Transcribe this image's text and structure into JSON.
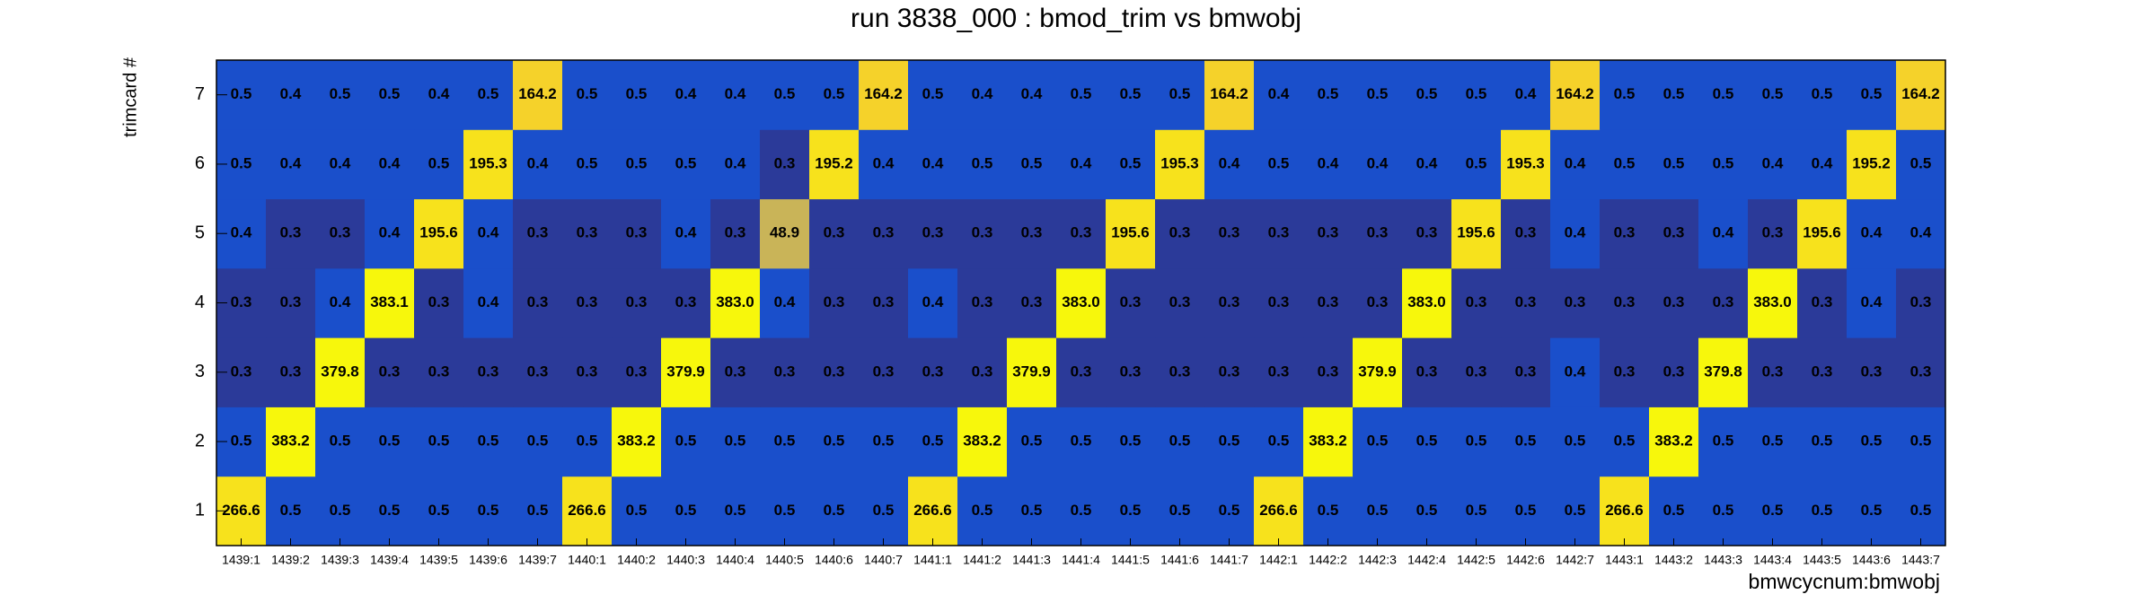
{
  "chart_data": {
    "type": "heatmap",
    "title": "run 3838_000 : bmod_trim vs bmwobj",
    "x_label": "bmwcycnum:bmwobj",
    "y_label": "trimcard #",
    "categories": [
      "1439:1",
      "1439:2",
      "1439:3",
      "1439:4",
      "1439:5",
      "1439:6",
      "1439:7",
      "1440:1",
      "1440:2",
      "1440:3",
      "1440:4",
      "1440:5",
      "1440:6",
      "1440:7",
      "1441:1",
      "1441:2",
      "1441:3",
      "1441:4",
      "1441:5",
      "1441:6",
      "1441:7",
      "1442:1",
      "1442:2",
      "1442:3",
      "1442:4",
      "1442:5",
      "1442:6",
      "1442:7",
      "1443:1",
      "1443:2",
      "1443:3",
      "1443:4",
      "1443:5",
      "1443:6",
      "1443:7"
    ],
    "y_categories": [
      1,
      2,
      3,
      4,
      5,
      6,
      7
    ],
    "values": [
      [
        266.6,
        0.5,
        0.5,
        0.5,
        0.5,
        0.5,
        0.5,
        266.6,
        0.5,
        0.5,
        0.5,
        0.5,
        0.5,
        0.5,
        266.6,
        0.5,
        0.5,
        0.5,
        0.5,
        0.5,
        0.5,
        266.6,
        0.5,
        0.5,
        0.5,
        0.5,
        0.5,
        0.5,
        266.6,
        0.5,
        0.5,
        0.5,
        0.5,
        0.5,
        0.5
      ],
      [
        0.5,
        383.2,
        0.5,
        0.5,
        0.5,
        0.5,
        0.5,
        0.5,
        383.2,
        0.5,
        0.5,
        0.5,
        0.5,
        0.5,
        0.5,
        383.2,
        0.5,
        0.5,
        0.5,
        0.5,
        0.5,
        0.5,
        383.2,
        0.5,
        0.5,
        0.5,
        0.5,
        0.5,
        0.5,
        383.2,
        0.5,
        0.5,
        0.5,
        0.5,
        0.5
      ],
      [
        0.3,
        0.3,
        379.8,
        0.3,
        0.3,
        0.3,
        0.3,
        0.3,
        0.3,
        379.9,
        0.3,
        0.3,
        0.3,
        0.3,
        0.3,
        0.3,
        379.9,
        0.3,
        0.3,
        0.3,
        0.3,
        0.3,
        0.3,
        379.9,
        0.3,
        0.3,
        0.3,
        0.4,
        0.3,
        0.3,
        379.8,
        0.3,
        0.3,
        0.3,
        0.3
      ],
      [
        0.3,
        0.3,
        0.4,
        383.1,
        0.3,
        0.4,
        0.3,
        0.3,
        0.3,
        0.3,
        383.0,
        0.4,
        0.3,
        0.3,
        0.4,
        0.3,
        0.3,
        383.0,
        0.3,
        0.3,
        0.3,
        0.3,
        0.3,
        0.3,
        383.0,
        0.3,
        0.3,
        0.3,
        0.3,
        0.3,
        0.3,
        383.0,
        0.3,
        0.4,
        0.3
      ],
      [
        0.4,
        0.3,
        0.3,
        0.4,
        195.6,
        0.4,
        0.3,
        0.3,
        0.3,
        0.4,
        0.3,
        48.9,
        0.3,
        0.3,
        0.3,
        0.3,
        0.3,
        0.3,
        195.6,
        0.3,
        0.3,
        0.3,
        0.3,
        0.3,
        0.3,
        195.6,
        0.3,
        0.4,
        0.3,
        0.3,
        0.4,
        0.3,
        195.6,
        0.4,
        0.4
      ],
      [
        0.5,
        0.4,
        0.4,
        0.4,
        0.5,
        195.3,
        0.4,
        0.5,
        0.5,
        0.5,
        0.4,
        0.3,
        195.2,
        0.4,
        0.4,
        0.5,
        0.5,
        0.4,
        0.5,
        195.3,
        0.4,
        0.5,
        0.4,
        0.4,
        0.4,
        0.5,
        195.3,
        0.4,
        0.5,
        0.5,
        0.5,
        0.4,
        0.4,
        195.2,
        0.5
      ],
      [
        0.5,
        0.4,
        0.5,
        0.5,
        0.4,
        0.5,
        164.2,
        0.5,
        0.5,
        0.4,
        0.4,
        0.5,
        0.5,
        164.2,
        0.5,
        0.4,
        0.4,
        0.5,
        0.5,
        0.5,
        164.2,
        0.4,
        0.5,
        0.5,
        0.5,
        0.5,
        0.4,
        164.2,
        0.5,
        0.5,
        0.5,
        0.5,
        0.5,
        0.5,
        164.2
      ]
    ],
    "value_labels": [
      [
        "266.6",
        "0.5",
        "0.5",
        "0.5",
        "0.5",
        "0.5",
        "0.5",
        "266.6",
        "0.5",
        "0.5",
        "0.5",
        "0.5",
        "0.5",
        "0.5",
        "266.6",
        "0.5",
        "0.5",
        "0.5",
        "0.5",
        "0.5",
        "0.5",
        "266.6",
        "0.5",
        "0.5",
        "0.5",
        "0.5",
        "0.5",
        "0.5",
        "266.6",
        "0.5",
        "0.5",
        "0.5",
        "0.5",
        "0.5",
        "0.5"
      ],
      [
        "0.5",
        "383.2",
        "0.5",
        "0.5",
        "0.5",
        "0.5",
        "0.5",
        "0.5",
        "383.2",
        "0.5",
        "0.5",
        "0.5",
        "0.5",
        "0.5",
        "0.5",
        "383.2",
        "0.5",
        "0.5",
        "0.5",
        "0.5",
        "0.5",
        "0.5",
        "383.2",
        "0.5",
        "0.5",
        "0.5",
        "0.5",
        "0.5",
        "0.5",
        "383.2",
        "0.5",
        "0.5",
        "0.5",
        "0.5",
        "0.5"
      ],
      [
        "0.3",
        "0.3",
        "379.8",
        "0.3",
        "0.3",
        "0.3",
        "0.3",
        "0.3",
        "0.3",
        "379.9",
        "0.3",
        "0.3",
        "0.3",
        "0.3",
        "0.3",
        "0.3",
        "379.9",
        "0.3",
        "0.3",
        "0.3",
        "0.3",
        "0.3",
        "0.3",
        "379.9",
        "0.3",
        "0.3",
        "0.3",
        "0.4",
        "0.3",
        "0.3",
        "379.8",
        "0.3",
        "0.3",
        "0.3",
        "0.3"
      ],
      [
        "0.3",
        "0.3",
        "0.4",
        "383.1",
        "0.3",
        "0.4",
        "0.3",
        "0.3",
        "0.3",
        "0.3",
        "383.0",
        "0.4",
        "0.3",
        "0.3",
        "0.4",
        "0.3",
        "0.3",
        "383.0",
        "0.3",
        "0.3",
        "0.3",
        "0.3",
        "0.3",
        "0.3",
        "383.0",
        "0.3",
        "0.3",
        "0.3",
        "0.3",
        "0.3",
        "0.3",
        "383.0",
        "0.3",
        "0.4",
        "0.3"
      ],
      [
        "0.4",
        "0.3",
        "0.3",
        "0.4",
        "195.6",
        "0.4",
        "0.3",
        "0.3",
        "0.3",
        "0.4",
        "0.3",
        "48.9",
        "0.3",
        "0.3",
        "0.3",
        "0.3",
        "0.3",
        "0.3",
        "195.6",
        "0.3",
        "0.3",
        "0.3",
        "0.3",
        "0.3",
        "0.3",
        "195.6",
        "0.3",
        "0.4",
        "0.3",
        "0.3",
        "0.4",
        "0.3",
        "195.6",
        "0.4",
        "0.4"
      ],
      [
        "0.5",
        "0.4",
        "0.4",
        "0.4",
        "0.5",
        "195.3",
        "0.4",
        "0.5",
        "0.5",
        "0.5",
        "0.4",
        "0.3",
        "195.2",
        "0.4",
        "0.4",
        "0.5",
        "0.5",
        "0.4",
        "0.5",
        "195.3",
        "0.4",
        "0.5",
        "0.4",
        "0.4",
        "0.4",
        "0.5",
        "195.3",
        "0.4",
        "0.5",
        "0.5",
        "0.5",
        "0.4",
        "0.4",
        "195.2",
        "0.5"
      ],
      [
        "0.5",
        "0.4",
        "0.5",
        "0.5",
        "0.4",
        "0.5",
        "164.2",
        "0.5",
        "0.5",
        "0.4",
        "0.4",
        "0.5",
        "0.5",
        "164.2",
        "0.5",
        "0.4",
        "0.4",
        "0.5",
        "0.5",
        "0.5",
        "164.2",
        "0.4",
        "0.5",
        "0.5",
        "0.5",
        "0.5",
        "0.4",
        "164.2",
        "0.5",
        "0.5",
        "0.5",
        "0.5",
        "0.5",
        "0.5",
        "164.2"
      ]
    ],
    "color_scale_log": true,
    "colorscale": [
      "#2b3a99",
      "#1a4fcb",
      "#1f5fd0",
      "#2a70c8",
      "#3a80b8",
      "#5090a0",
      "#6a9c88",
      "#84a474",
      "#9eab66",
      "#b4b05e",
      "#c9b458",
      "#e0c040",
      "#f5d22a",
      "#f7e21c",
      "#f7f70c"
    ]
  }
}
